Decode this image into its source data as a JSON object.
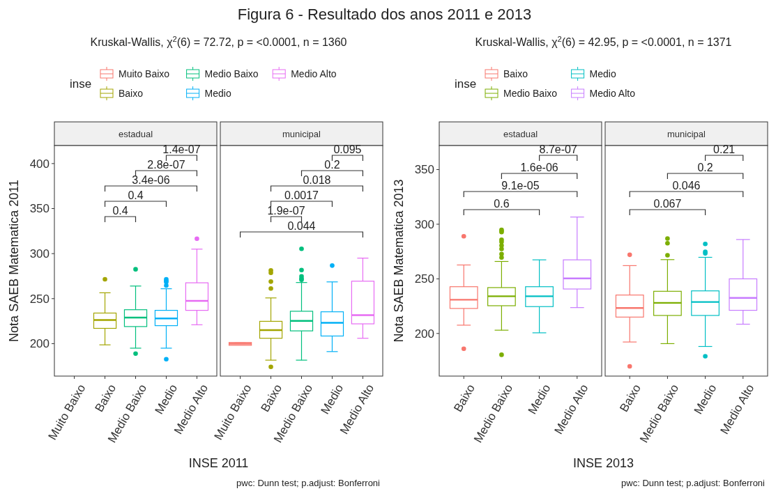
{
  "chart_data": [
    {
      "type": "box",
      "title": "estadual",
      "subtitle": "Kruskal-Wallis, χ$^{2}$(6) = 72.72, p = <0.0001, n = 1360",
      "xlabel": "INSE 2011",
      "ylabel": "Nota SAEB Matematica 2011",
      "legend_title": "inse",
      "legend": "top",
      "categories": [
        "Muito Baixo",
        "Baixo",
        "Medio Baixo",
        "Medio",
        "Medio Alto"
      ],
      "series": [
        {
          "name": "Muito Baixo",
          "color": "#f8766d",
          "boxes": [
            null,
            null,
            null,
            null,
            null
          ]
        },
        {
          "name": "Baixo",
          "color": "#a3a500",
          "boxes": [
            null,
            {
              "low": 198.7,
              "q1": 217,
              "median": 226.3,
              "q3": 234,
              "high": 256.5,
              "outliers": [
                271.5
              ]
            },
            null,
            null,
            null
          ]
        },
        {
          "name": "Medio Baixo",
          "color": "#00bf7d",
          "boxes": [
            null,
            null,
            {
              "low": 195,
              "q1": 219,
              "median": 229,
              "q3": 237.7,
              "high": 264,
              "outliers": [
                282.6,
                189
              ]
            },
            null,
            null
          ]
        },
        {
          "name": "Medio",
          "color": "#00b0f6",
          "boxes": [
            null,
            null,
            null,
            {
              "low": 195,
              "q1": 220,
              "median": 228,
              "q3": 237,
              "high": 261,
              "outliers": [
                271.5,
                269.7,
                268.4,
                264.5,
                182.7
              ]
            },
            null
          ]
        },
        {
          "name": "Medio Alto",
          "color": "#e76bf3",
          "boxes": [
            null,
            null,
            null,
            null,
            {
              "low": 221,
              "q1": 237,
              "median": 247.5,
              "q3": 267.6,
              "high": 305,
              "outliers": [
                316.6
              ]
            }
          ]
        }
      ],
      "ylim": [
        164,
        420
      ],
      "yticks": [
        200,
        250,
        300,
        350,
        400
      ],
      "annotations": [
        "Figura 6 - Resultado dos anos 2011 e 2013",
        "0.4",
        "0.4",
        "3.4e-06",
        "2.8e-07",
        "1.4e-07"
      ]
    },
    {
      "type": "box",
      "title": "municipal",
      "tick_labels": "x",
      "categories": [
        "Muito Baixo",
        "Baixo",
        "Medio Baixo",
        "Medio",
        "Medio Alto"
      ],
      "series": [
        {
          "color": "#f8766d",
          "boxes": [
            {
              "low": 199,
              "q1": 198.2,
              "median": 200,
              "q3": 201.3,
              "high": 201
            },
            null,
            null,
            null,
            null
          ]
        },
        {
          "color": "#a3a500",
          "boxes": [
            null,
            {
              "low": 181.7,
              "q1": 206,
              "median": 215,
              "q3": 224.8,
              "high": 250.8,
              "outliers": [
                281.3,
                278.7,
                268.9,
                261.2,
                174.2
              ]
            },
            null,
            null,
            null
          ]
        },
        {
          "color": "#00bf7d",
          "boxes": [
            null,
            null,
            {
              "low": 181.7,
              "q1": 214.2,
              "median": 225.3,
              "q3": 236,
              "high": 267.9,
              "outliers": [
                305.3,
                281.8,
                274.8,
                272.3,
                271
              ]
            },
            null,
            null
          ]
        },
        {
          "color": "#00b0f6",
          "boxes": [
            null,
            null,
            null,
            {
              "low": 191.2,
              "q1": 208.5,
              "median": 223.2,
              "q3": 235.4,
              "high": 268.6,
              "outliers": [
                286.7
              ]
            },
            null
          ]
        },
        {
          "color": "#e76bf3",
          "boxes": [
            null,
            null,
            null,
            null,
            {
              "low": 206,
              "q1": 222,
              "median": 231.7,
              "q3": 269.4,
              "high": 295
            }
          ]
        }
      ],
      "ylim": [
        164,
        420
      ],
      "yticks": [
        200,
        250,
        300,
        350,
        400
      ],
      "annotations": [
        "pwc: Dunn test; p.adjust: Bonferroni",
        "0.044",
        "1.9e-07",
        "0.0017",
        "0.018",
        "0.2",
        "0.095"
      ]
    },
    {
      "type": "box",
      "title": "estadual",
      "subtitle": "Kruskal-Wallis, χ$^{2}$(6) = 42.95, p = <0.0001, n = 1371",
      "xlabel": "INSE 2013",
      "ylabel": "Nota SAEB Matematica 2013",
      "legend_title": "inse",
      "legend": "top",
      "categories": [
        "Baixo",
        "Medio Baixo",
        "Medio",
        "Medio Alto"
      ],
      "series": [
        {
          "name": "Baixo",
          "color": "#f8766d",
          "boxes": [
            {
              "low": 207.6,
              "q1": 222.9,
              "median": 230.9,
              "q3": 242.8,
              "high": 262.7,
              "outliers": [
                289,
                186
              ]
            },
            null,
            null,
            null
          ]
        },
        {
          "name": "Medio Baixo",
          "color": "#7cae00",
          "boxes": [
            null,
            {
              "low": 203,
              "q1": 225.4,
              "median": 234.1,
              "q3": 242,
              "high": 265.9,
              "outliers": [
                294.9,
                293.9,
                292.8,
                285.8,
                283.9,
                280.5,
                277.3,
                272.7,
                269.5,
                180.5
              ]
            },
            null,
            null
          ]
        },
        {
          "name": "Medio",
          "color": "#00bfc4",
          "boxes": [
            null,
            null,
            {
              "low": 200.6,
              "q1": 224.6,
              "median": 234.1,
              "q3": 242.8,
              "high": 267.4
            },
            null
          ]
        },
        {
          "name": "Medio Alto",
          "color": "#c77cff",
          "boxes": [
            null,
            null,
            null,
            {
              "low": 223.7,
              "q1": 240.7,
              "median": 250.4,
              "q3": 267.4,
              "high": 306.6
            }
          ]
        }
      ],
      "ylim": [
        161,
        372
      ],
      "yticks": [
        200,
        250,
        300,
        350
      ],
      "annotations": [
        "0.6",
        "9.1e-05",
        "1.6e-06",
        "8.7e-07"
      ]
    },
    {
      "type": "box",
      "title": "municipal",
      "tick_labels": "x",
      "categories": [
        "Baixo",
        "Medio Baixo",
        "Medio",
        "Medio Alto"
      ],
      "series": [
        {
          "color": "#f8766d",
          "boxes": [
            {
              "low": 192.2,
              "q1": 215,
              "median": 223.3,
              "q3": 235.2,
              "high": 262.1,
              "outliers": [
                272,
                169.9
              ]
            },
            null,
            null,
            null
          ]
        },
        {
          "color": "#7cae00",
          "boxes": [
            null,
            {
              "low": 190.7,
              "q1": 216.5,
              "median": 228,
              "q3": 238.6,
              "high": 267.6,
              "outliers": [
                286.9,
                282.6,
                271.6
              ]
            },
            null,
            null
          ]
        },
        {
          "color": "#00bfc4",
          "boxes": [
            null,
            null,
            {
              "low": 188.1,
              "q1": 216.5,
              "median": 228.8,
              "q3": 239,
              "high": 269.7,
              "outliers": [
                282,
                274.8,
                273.3,
                179.2
              ]
            },
            null
          ]
        },
        {
          "color": "#c77cff",
          "boxes": [
            null,
            null,
            null,
            {
              "low": 208.5,
              "q1": 221.2,
              "median": 232.6,
              "q3": 250,
              "high": 286
            }
          ]
        }
      ],
      "ylim": [
        161,
        372
      ],
      "yticks": [
        200,
        250,
        300,
        350
      ],
      "annotations": [
        "pwc: Dunn test; p.adjust: Bonferroni",
        "0.067",
        "0.046",
        "0.2",
        "0.21"
      ]
    }
  ]
}
